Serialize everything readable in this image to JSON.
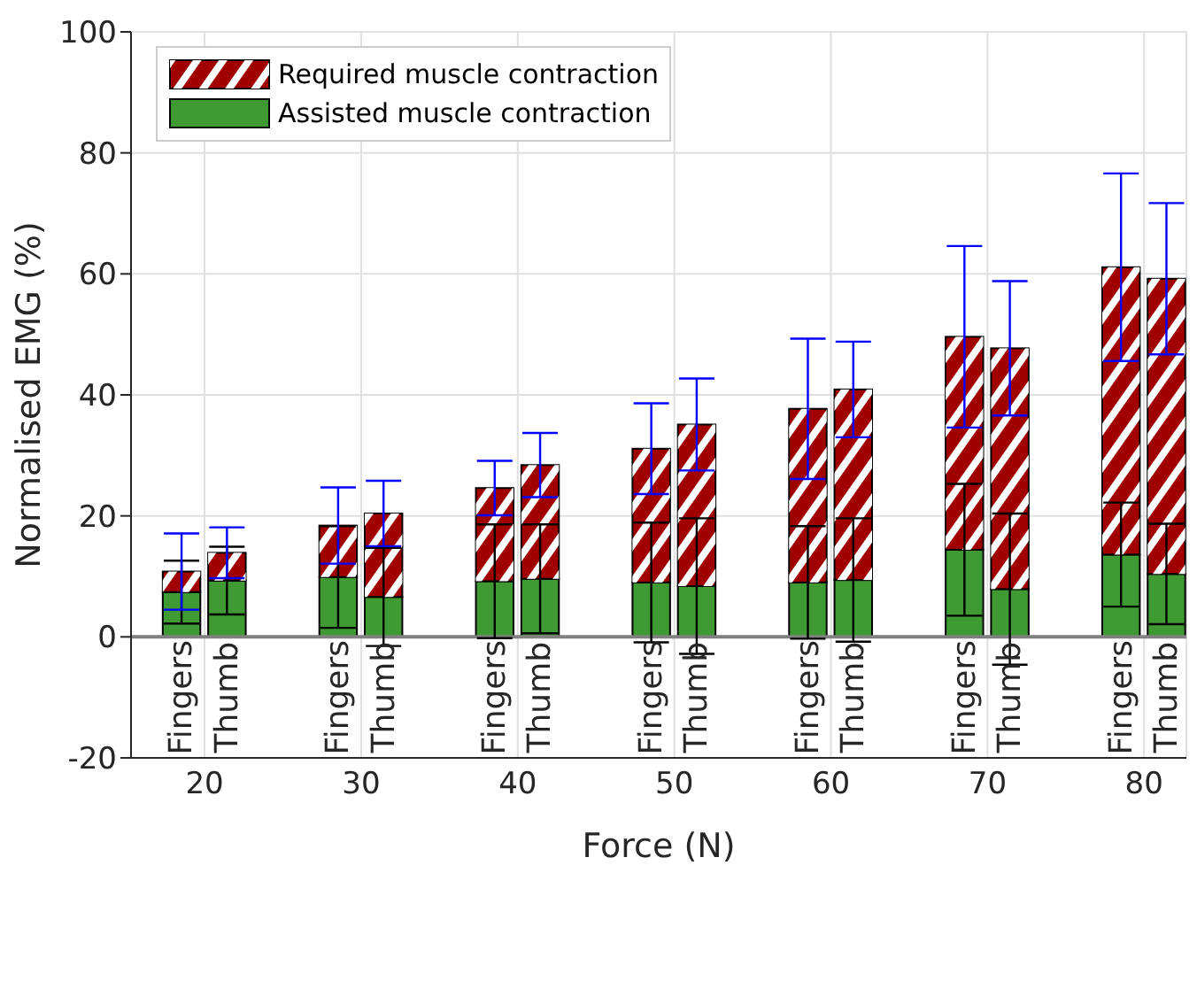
{
  "chart_data": {
    "type": "bar",
    "xlabel": "Force (N)",
    "ylabel": "Normalised EMG (%)",
    "x": [
      18.55,
      21.45,
      28.55,
      31.45,
      38.55,
      41.45,
      48.55,
      51.45,
      58.55,
      61.45,
      68.55,
      71.45,
      78.55,
      81.45
    ],
    "xlim": [
      15.3,
      82.7
    ],
    "xticks": [
      20,
      30,
      40,
      50,
      60,
      70,
      80
    ],
    "ylim": [
      -20,
      100
    ],
    "yticks": [
      -20,
      0,
      20,
      40,
      60,
      80,
      100
    ],
    "stacked": true,
    "grid": true,
    "legend": "top left",
    "series": [
      {
        "name": "Assisted muscle contraction",
        "color": "#3f9a34",
        "values": [
          7.4,
          9.3,
          9.9,
          6.6,
          9.2,
          9.6,
          9.0,
          8.4,
          9.0,
          9.4,
          14.4,
          7.9,
          13.6,
          10.4
        ],
        "errors": [
          5.2,
          5.6,
          8.4,
          8.1,
          9.4,
          9.0,
          9.9,
          11.2,
          9.3,
          10.2,
          10.9,
          12.5,
          8.6,
          8.3
        ]
      },
      {
        "name": "Required muscle contraction",
        "color": "#a00000",
        "values": [
          3.4,
          4.6,
          8.5,
          13.8,
          15.4,
          18.8,
          22.1,
          26.7,
          28.7,
          31.5,
          35.2,
          39.8,
          47.5,
          48.8
        ],
        "errors": [
          6.3,
          4.2,
          6.3,
          5.4,
          4.5,
          5.3,
          7.5,
          7.6,
          11.6,
          7.9,
          15.0,
          11.1,
          15.5,
          12.5
        ]
      }
    ],
    "ref_lines": [
      {
        "axis": "y",
        "value": 0,
        "color": "#808080"
      }
    ],
    "annotations": [
      "Fingers",
      "Thumb",
      "Fingers",
      "Thumb",
      "Fingers",
      "Thumb",
      "Fingers",
      "Thumb",
      "Fingers",
      "Thumb",
      "Fingers",
      "Thumb",
      "Fingers",
      "Thumb"
    ]
  }
}
